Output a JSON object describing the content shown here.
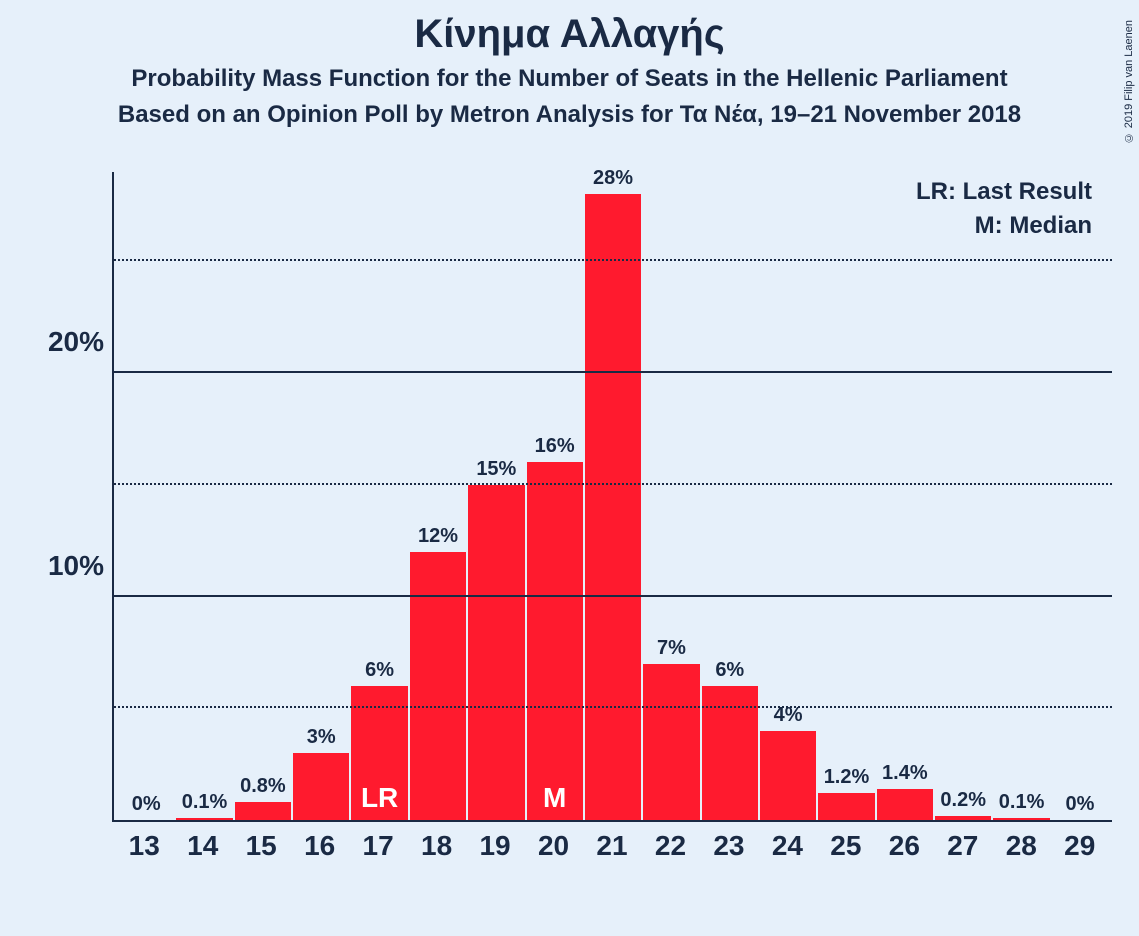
{
  "title": "Κίνημα Αλλαγής",
  "subtitle1": "Probability Mass Function for the Number of Seats in the Hellenic Parliament",
  "subtitle2": "Based on an Opinion Poll by Metron Analysis for Τα Νέα, 19–21 November 2018",
  "legend": {
    "lr": "LR: Last Result",
    "m": "M: Median"
  },
  "copyright": "© 2019 Filip van Laenen",
  "chart": {
    "type": "bar",
    "bar_color": "#ff1a2e",
    "background_color": "#e6f0fa",
    "text_color": "#1a2a44",
    "marker_text_color": "#ffffff",
    "title_fontsize": 40,
    "subtitle_fontsize": 24,
    "legend_fontsize": 24,
    "bar_label_fontsize": 20,
    "marker_fontsize": 28,
    "xlabel_fontsize": 28,
    "ytick_fontsize": 28,
    "ymax": 29,
    "gridlines": [
      {
        "value": 5,
        "style": "dotted",
        "label": ""
      },
      {
        "value": 10,
        "style": "solid",
        "label": "10%"
      },
      {
        "value": 15,
        "style": "dotted",
        "label": ""
      },
      {
        "value": 20,
        "style": "solid",
        "label": "20%"
      },
      {
        "value": 25,
        "style": "dotted",
        "label": ""
      }
    ],
    "bars": [
      {
        "x": "13",
        "value": 0,
        "label": "0%",
        "marker": ""
      },
      {
        "x": "14",
        "value": 0.1,
        "label": "0.1%",
        "marker": ""
      },
      {
        "x": "15",
        "value": 0.8,
        "label": "0.8%",
        "marker": ""
      },
      {
        "x": "16",
        "value": 3,
        "label": "3%",
        "marker": ""
      },
      {
        "x": "17",
        "value": 6,
        "label": "6%",
        "marker": "LR"
      },
      {
        "x": "18",
        "value": 12,
        "label": "12%",
        "marker": ""
      },
      {
        "x": "19",
        "value": 15,
        "label": "15%",
        "marker": ""
      },
      {
        "x": "20",
        "value": 16,
        "label": "16%",
        "marker": "M"
      },
      {
        "x": "21",
        "value": 28,
        "label": "28%",
        "marker": ""
      },
      {
        "x": "22",
        "value": 7,
        "label": "7%",
        "marker": ""
      },
      {
        "x": "23",
        "value": 6,
        "label": "6%",
        "marker": ""
      },
      {
        "x": "24",
        "value": 4,
        "label": "4%",
        "marker": ""
      },
      {
        "x": "25",
        "value": 1.2,
        "label": "1.2%",
        "marker": ""
      },
      {
        "x": "26",
        "value": 1.4,
        "label": "1.4%",
        "marker": ""
      },
      {
        "x": "27",
        "value": 0.2,
        "label": "0.2%",
        "marker": ""
      },
      {
        "x": "28",
        "value": 0.1,
        "label": "0.1%",
        "marker": ""
      },
      {
        "x": "29",
        "value": 0,
        "label": "0%",
        "marker": ""
      }
    ]
  }
}
